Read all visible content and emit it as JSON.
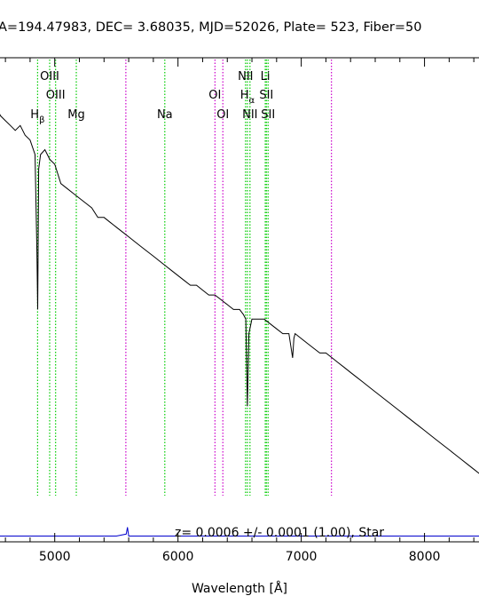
{
  "chart_data": {
    "type": "line",
    "title": "A=194.47983, DEC= 3.68035, MJD=52026, Plate= 523, Fiber=50",
    "xlabel": "Wavelength [Å]",
    "ylabel": "",
    "xlim": [
      4520,
      8550
    ],
    "ylim": [
      0,
      1
    ],
    "x_ticks": [
      5000,
      6000,
      7000,
      8000
    ],
    "grid": false,
    "annotation": "z= 0.0006 +/- 0.0001 (1.00), Star",
    "spectrum": {
      "x": [
        4520,
        4560,
        4600,
        4640,
        4680,
        4720,
        4760,
        4800,
        4840,
        4855,
        4862,
        4870,
        4885,
        4920,
        4960,
        5000,
        5050,
        5100,
        5150,
        5200,
        5250,
        5300,
        5350,
        5400,
        5450,
        5500,
        5550,
        5600,
        5650,
        5700,
        5750,
        5800,
        5850,
        5900,
        5950,
        6000,
        6050,
        6100,
        6150,
        6200,
        6250,
        6300,
        6350,
        6400,
        6450,
        6500,
        6530,
        6550,
        6563,
        6575,
        6600,
        6650,
        6700,
        6750,
        6800,
        6850,
        6900,
        6930,
        6940,
        6950,
        7000,
        7050,
        7100,
        7150,
        7200,
        7250,
        7300,
        7350,
        7400,
        7450,
        7500,
        7550,
        7600,
        7650,
        7700,
        7750,
        7800,
        7850,
        7900,
        7950,
        8000,
        8050,
        8100,
        8150,
        8200,
        8250,
        8300,
        8350,
        8400,
        8450,
        8500,
        8550
      ],
      "y": [
        0.9,
        0.88,
        0.87,
        0.86,
        0.85,
        0.86,
        0.84,
        0.83,
        0.8,
        0.6,
        0.48,
        0.77,
        0.8,
        0.81,
        0.79,
        0.78,
        0.74,
        0.73,
        0.72,
        0.71,
        0.7,
        0.69,
        0.67,
        0.67,
        0.66,
        0.65,
        0.64,
        0.63,
        0.62,
        0.61,
        0.6,
        0.59,
        0.58,
        0.57,
        0.56,
        0.55,
        0.54,
        0.53,
        0.53,
        0.52,
        0.51,
        0.51,
        0.5,
        0.49,
        0.48,
        0.48,
        0.47,
        0.46,
        0.28,
        0.43,
        0.46,
        0.46,
        0.46,
        0.45,
        0.44,
        0.43,
        0.43,
        0.38,
        0.42,
        0.43,
        0.42,
        0.41,
        0.4,
        0.39,
        0.39,
        0.38,
        0.37,
        0.36,
        0.35,
        0.34,
        0.33,
        0.32,
        0.31,
        0.3,
        0.29,
        0.28,
        0.27,
        0.26,
        0.25,
        0.24,
        0.23,
        0.22,
        0.21,
        0.2,
        0.19,
        0.18,
        0.17,
        0.16,
        0.15,
        0.14,
        0.13,
        0.12
      ]
    },
    "error": {
      "x": [
        4520,
        5500,
        5580,
        5590,
        5600,
        5700,
        6500,
        7500,
        8000,
        8500,
        8550
      ],
      "y": [
        0.012,
        0.012,
        0.016,
        0.03,
        0.012,
        0.012,
        0.012,
        0.012,
        0.012,
        0.012,
        0.012
      ]
    },
    "lines": [
      {
        "label": "H",
        "sub": "β",
        "x": 4861,
        "color": "#00cc00",
        "row": 3
      },
      {
        "label": "OIII",
        "sub": "",
        "x": 4959,
        "color": "#00cc00",
        "row": 1
      },
      {
        "label": "OIII",
        "sub": "",
        "x": 5007,
        "color": "#00cc00",
        "row": 2
      },
      {
        "label": "Mg",
        "sub": "",
        "x": 5175,
        "color": "#00cc00",
        "row": 3
      },
      {
        "label": "",
        "sub": "",
        "x": 5577,
        "color": "#cc00cc",
        "row": 0
      },
      {
        "label": "Na",
        "sub": "",
        "x": 5893,
        "color": "#00cc00",
        "row": 3
      },
      {
        "label": "OI",
        "sub": "",
        "x": 6300,
        "color": "#cc00cc",
        "row": 2
      },
      {
        "label": "OI",
        "sub": "",
        "x": 6364,
        "color": "#cc00cc",
        "row": 3
      },
      {
        "label": "NII",
        "sub": "",
        "x": 6548,
        "color": "#00cc00",
        "row": 1
      },
      {
        "label": "H",
        "sub": "α",
        "x": 6563,
        "color": "#00cc00",
        "row": 2
      },
      {
        "label": "NII",
        "sub": "",
        "x": 6584,
        "color": "#00cc00",
        "row": 3
      },
      {
        "label": "Li",
        "sub": "",
        "x": 6708,
        "color": "#00cc00",
        "row": 1
      },
      {
        "label": "SII",
        "sub": "",
        "x": 6717,
        "color": "#00cc00",
        "row": 2
      },
      {
        "label": "SII",
        "sub": "",
        "x": 6731,
        "color": "#00cc00",
        "row": 3
      },
      {
        "label": "",
        "sub": "",
        "x": 7245,
        "color": "#cc00cc",
        "row": 0
      }
    ],
    "colors": {
      "spectrum": "#000000",
      "error": "#0000cc",
      "emission": "#00cc00",
      "sky": "#cc00cc"
    }
  }
}
